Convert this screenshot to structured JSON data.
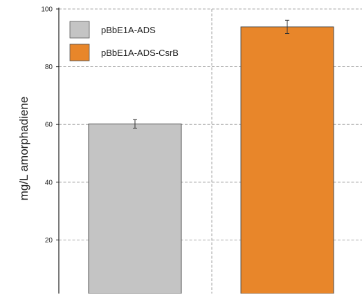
{
  "chart_data": {
    "type": "bar",
    "ylabel": "mg/L amorphadiene",
    "ylim": [
      0,
      100
    ],
    "yticks": [
      20,
      40,
      60,
      80,
      100
    ],
    "grid": true,
    "legend_position": "top-left",
    "series": [
      {
        "name": "pBbE1A-ADS",
        "value": 60.2,
        "error": 1.5,
        "color": "#c4c4c4"
      },
      {
        "name": "pBbE1A-ADS-CsrB",
        "value": 93.8,
        "error": 2.3,
        "color": "#e8862a"
      }
    ]
  }
}
